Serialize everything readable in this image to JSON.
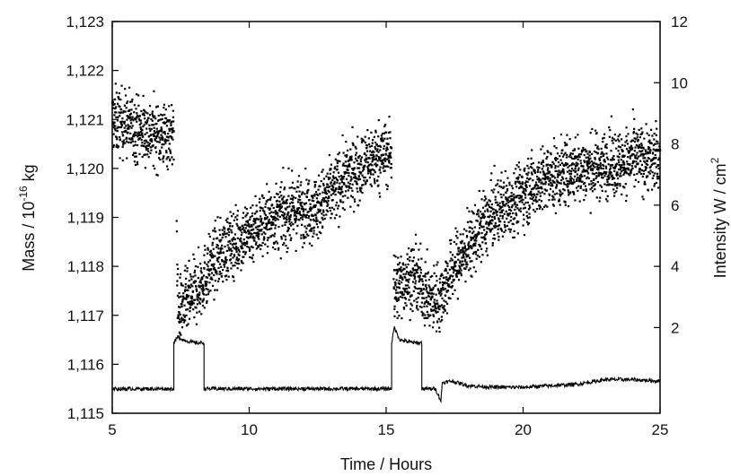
{
  "chart_data": {
    "type": "scatter",
    "title": "",
    "xlabel": "Time / Hours",
    "ylabel_left": "Mass / 10",
    "ylabel_left_exp": "-16",
    "ylabel_left_unit": " kg",
    "ylabel_right": "Intensity  W / cm",
    "ylabel_right_exp": "2",
    "xlim": [
      5,
      25
    ],
    "ylim_left": [
      1.115,
      1.123
    ],
    "ylim_right": [
      -0.8,
      12
    ],
    "x_ticks": [
      5,
      10,
      15,
      20,
      25
    ],
    "x_tick_labels": [
      "5",
      "10",
      "15",
      "20",
      "25"
    ],
    "y_left_ticks": [
      1.115,
      1.116,
      1.117,
      1.118,
      1.119,
      1.12,
      1.121,
      1.122,
      1.123
    ],
    "y_left_tick_labels": [
      "1,115",
      "1,116",
      "1,117",
      "1,118",
      "1,119",
      "1,120",
      "1,121",
      "1,122",
      "1,123"
    ],
    "y_right_ticks": [
      2,
      4,
      6,
      8,
      10,
      12
    ],
    "y_right_tick_labels": [
      "2",
      "4",
      "6",
      "8",
      "10",
      "12"
    ],
    "grid": false,
    "series": [
      {
        "axis": "left",
        "style": "scatter",
        "x": [
          5.0,
          5.5,
          6.0,
          6.5,
          7.0,
          7.3,
          7.4,
          7.8,
          8.2,
          8.6,
          9.0,
          9.5,
          10.0,
          10.5,
          11.0,
          11.5,
          12.0,
          12.5,
          13.0,
          13.5,
          14.0,
          14.5,
          15.0,
          15.2,
          15.3,
          15.6,
          16.0,
          16.3,
          16.6,
          17.0,
          17.5,
          18.0,
          18.5,
          19.0,
          19.5,
          20.0,
          20.5,
          21.0,
          21.5,
          22.0,
          22.5,
          23.0,
          23.5,
          24.0,
          24.5,
          25.0
        ],
        "y": [
          1.121,
          1.1209,
          1.1208,
          1.1207,
          1.1207,
          1.1206,
          1.1171,
          1.1173,
          1.1176,
          1.118,
          1.1183,
          1.1185,
          1.1187,
          1.1189,
          1.119,
          1.1191,
          1.1192,
          1.1192,
          1.1195,
          1.1198,
          1.12,
          1.1202,
          1.1203,
          1.1203,
          1.1175,
          1.1177,
          1.1178,
          1.1176,
          1.1173,
          1.1174,
          1.118,
          1.1184,
          1.1188,
          1.1191,
          1.1193,
          1.1195,
          1.1197,
          1.1198,
          1.1199,
          1.12,
          1.12,
          1.1201,
          1.1201,
          1.1202,
          1.1202,
          1.1202
        ]
      },
      {
        "axis": "right",
        "style": "line",
        "x": [
          5.0,
          7.25,
          7.25,
          7.4,
          7.6,
          8.0,
          8.35,
          8.35,
          10.0,
          12.0,
          15.2,
          15.2,
          15.3,
          15.5,
          16.0,
          16.3,
          16.3,
          16.8,
          17.0,
          17.05,
          17.4,
          18.0,
          19.0,
          20.0,
          21.0,
          22.0,
          23.0,
          24.0,
          25.0
        ],
        "y": [
          0.0,
          0.0,
          1.5,
          1.7,
          1.6,
          1.5,
          1.5,
          0.0,
          0.0,
          0.0,
          0.0,
          1.5,
          2.0,
          1.6,
          1.5,
          1.5,
          0.0,
          0.0,
          -0.4,
          0.2,
          0.25,
          0.1,
          0.05,
          0.05,
          0.1,
          0.15,
          0.3,
          0.3,
          0.25
        ]
      }
    ]
  }
}
